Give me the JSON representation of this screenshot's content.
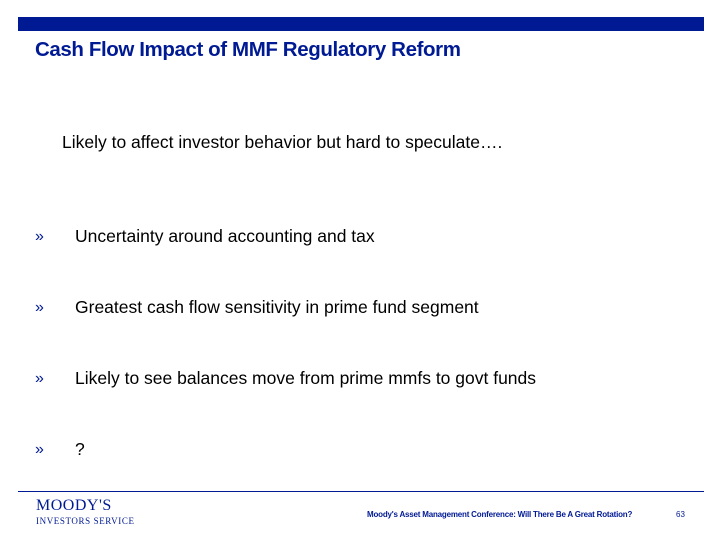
{
  "slide": {
    "title": "Cash Flow Impact of MMF Regulatory Reform",
    "subtitle": "Likely to affect investor behavior but hard to speculate….",
    "bullet_marker": "»",
    "bullets": [
      "Uncertainty around accounting and tax",
      "Greatest cash flow sensitivity in prime fund segment",
      "Likely to see balances move from prime mmfs to govt funds",
      "?"
    ]
  },
  "footer": {
    "logo_name": "MOODY'S",
    "logo_sub": "INVESTORS SERVICE",
    "caption": "Moody's Asset Management Conference: Will There Be A Great Rotation?",
    "page_number": "63"
  },
  "colors": {
    "brand_blue": "#001a94",
    "text": "#000000",
    "background": "#ffffff"
  }
}
